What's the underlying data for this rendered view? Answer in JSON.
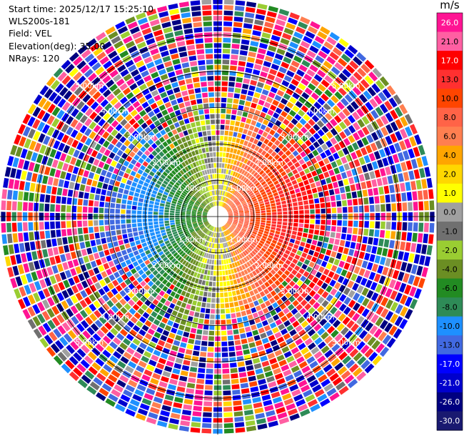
{
  "header": {
    "start_time": "Start time: 2025/12/17 15:25:10",
    "instrument": "WLS200s-181",
    "field": "Field: VEL",
    "elevation": "Elevation(deg): 35.00",
    "nrays": "NRays: 120"
  },
  "colorbar": {
    "unit": "m/s",
    "levels": [
      "26.0",
      "21.0",
      "17.0",
      "13.0",
      "10.0",
      "8.0",
      "6.0",
      "4.0",
      "2.0",
      "1.0",
      "0.0",
      "-1.0",
      "-2.0",
      "-4.0",
      "-6.0",
      "-8.0",
      "-10.0",
      "-13.0",
      "-17.0",
      "-21.0",
      "-26.0",
      "-30.0"
    ],
    "colors": [
      "#ff1493",
      "#ff5fa2",
      "#ff0000",
      "#ff3030",
      "#ff4500",
      "#ff6347",
      "#ff7f50",
      "#ffa500",
      "#ffd700",
      "#ffff00",
      "#a0a0a0",
      "#707070",
      "#9acd32",
      "#6b8e23",
      "#228b22",
      "#2e8b57",
      "#1e90ff",
      "#4169e1",
      "#0000ff",
      "#0000cd",
      "#000080",
      "#191970"
    ]
  },
  "chart_data": {
    "type": "polar-ppi",
    "field": "VEL",
    "unit": "m/s",
    "elevation_deg": 35.0,
    "n_rays": 120,
    "range_rings_km": [
      1.0,
      2.0,
      3.0,
      4.0,
      5.0
    ],
    "range_ring_labels": [
      "1.00km",
      "2.00km",
      "3.00km",
      "4.00km",
      "5.00km"
    ],
    "max_range_km": 6.0,
    "color_range": [
      -30.0,
      26.0
    ],
    "pattern": "Velocity field: negative (toward, green/blue) on the west side, positive (away, yellow/red) on the east side near the center; outer gates dominated by noisy mixed values across the full color scale."
  }
}
